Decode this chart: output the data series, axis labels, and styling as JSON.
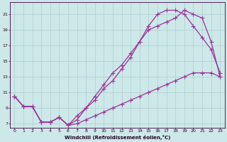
{
  "xlabel": "Windchill (Refroidissement éolien,°C)",
  "background_color": "#cde8e8",
  "grid_color": "#b0cccc",
  "line_color": "#993399",
  "xlim": [
    -0.5,
    23.5
  ],
  "ylim": [
    6.5,
    22.5
  ],
  "yticks": [
    7,
    9,
    11,
    13,
    15,
    17,
    19,
    21
  ],
  "xticks": [
    0,
    1,
    2,
    3,
    4,
    5,
    6,
    7,
    8,
    9,
    10,
    11,
    12,
    13,
    14,
    15,
    16,
    17,
    18,
    19,
    20,
    21,
    22,
    23
  ],
  "line_top_x": [
    0,
    1,
    2,
    3,
    4,
    5,
    6,
    7,
    8,
    9,
    10,
    11,
    12,
    13,
    14,
    15,
    16,
    17,
    18,
    19,
    20,
    21,
    22,
    23
  ],
  "line_top_y": [
    10.5,
    9.2,
    9.2,
    7.2,
    7.2,
    7.8,
    6.8,
    7.5,
    9.0,
    10.5,
    12.0,
    13.5,
    14.5,
    16.0,
    17.5,
    19.0,
    19.5,
    20.0,
    20.5,
    21.5,
    21.0,
    20.5,
    17.5,
    13.0
  ],
  "line_mid_x": [
    0,
    1,
    2,
    3,
    4,
    5,
    6,
    7,
    8,
    9,
    10,
    11,
    12,
    13,
    14,
    15,
    16,
    17,
    18,
    19,
    20,
    21,
    22,
    23
  ],
  "line_mid_y": [
    10.5,
    9.2,
    9.2,
    7.2,
    7.2,
    7.8,
    6.8,
    8.0,
    9.0,
    10.0,
    11.5,
    12.5,
    14.0,
    15.5,
    17.5,
    19.5,
    21.0,
    21.5,
    21.5,
    21.0,
    19.5,
    18.0,
    16.5,
    13.5
  ],
  "line_bot_x": [
    0,
    1,
    2,
    3,
    4,
    5,
    6,
    7,
    8,
    9,
    10,
    11,
    12,
    13,
    14,
    15,
    16,
    17,
    18,
    19,
    20,
    21,
    22,
    23
  ],
  "line_bot_y": [
    10.5,
    9.2,
    9.2,
    7.2,
    7.2,
    7.8,
    6.8,
    7.0,
    7.5,
    8.0,
    8.5,
    9.0,
    9.5,
    10.0,
    10.5,
    11.0,
    11.5,
    12.0,
    12.5,
    13.0,
    13.5,
    13.5,
    13.5,
    13.0
  ]
}
